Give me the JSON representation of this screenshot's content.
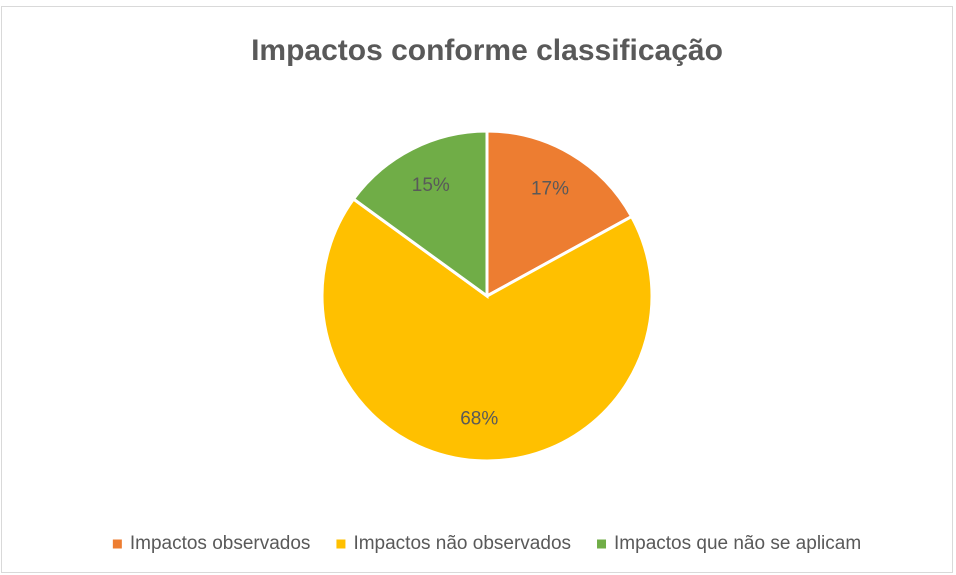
{
  "chart_data": {
    "type": "pie",
    "title": "Impactos conforme classificação",
    "categories": [
      "Impactos observados",
      "Impactos não observados",
      "Impactos que não se aplicam"
    ],
    "values": [
      17,
      68,
      15
    ],
    "value_labels": [
      "17%",
      "68%",
      "15%"
    ],
    "colors": [
      "#ED7D31",
      "#FFC000",
      "#70AD47"
    ],
    "legend": "bottom"
  }
}
